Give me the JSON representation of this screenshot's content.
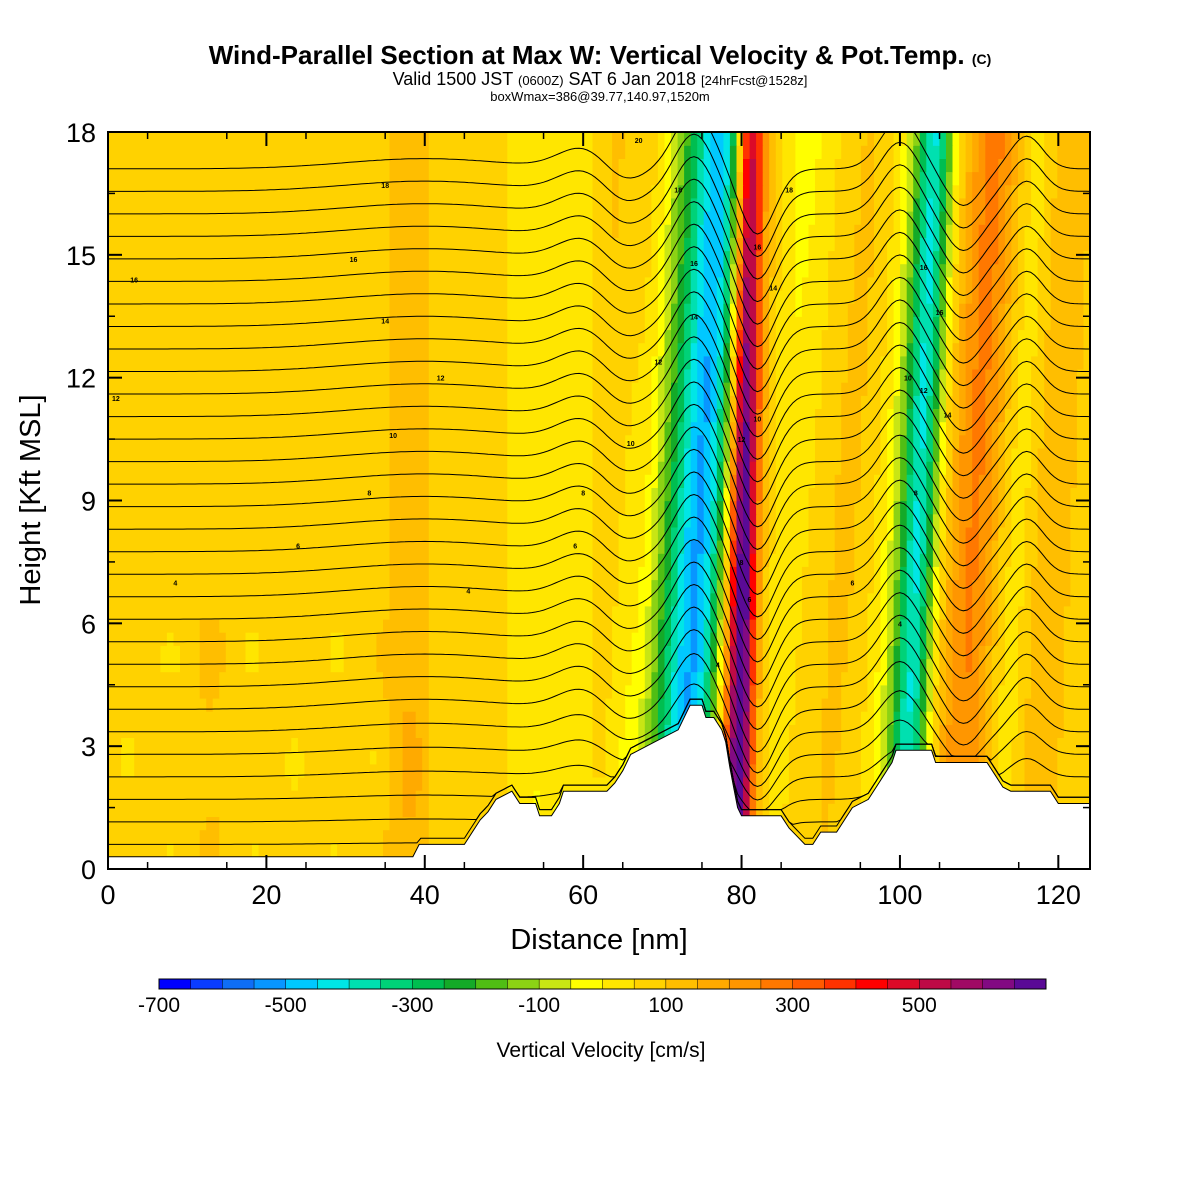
{
  "title": {
    "main": "Wind-Parallel Section at Max W: Vertical Velocity & Pot.Temp.",
    "main_tag": "(C)",
    "line2_prefix": "Valid 1500 JST",
    "line2_utc": "(0600Z)",
    "line2_date": "SAT 6 Jan 2018",
    "line2_fcst": "[24hrFcst@1528z]",
    "line3": "boxWmax=386@39.77,140.97,1520m"
  },
  "chart_data": {
    "type": "heatmap",
    "xlabel": "Distance [nm]",
    "ylabel": "Height [Kft MSL]",
    "xlim": [
      0,
      124
    ],
    "ylim": [
      0,
      18
    ],
    "x_ticks": [
      "0",
      "20",
      "40",
      "60",
      "80",
      "100",
      "120"
    ],
    "y_ticks": [
      "0",
      "3",
      "6",
      "9",
      "12",
      "15",
      "18"
    ],
    "terrain_profile": [
      [
        0,
        0.3
      ],
      [
        38.5,
        0.3
      ],
      [
        39.3,
        0.6
      ],
      [
        45,
        0.6
      ],
      [
        46,
        0.9
      ],
      [
        47,
        1.2
      ],
      [
        48,
        1.4
      ],
      [
        49,
        1.7
      ],
      [
        51,
        1.9
      ],
      [
        52,
        1.6
      ],
      [
        54,
        1.6
      ],
      [
        54.5,
        1.3
      ],
      [
        56,
        1.3
      ],
      [
        57,
        1.6
      ],
      [
        57.5,
        1.9
      ],
      [
        63,
        1.9
      ],
      [
        64,
        2.1
      ],
      [
        65,
        2.4
      ],
      [
        66,
        2.8
      ],
      [
        69,
        3.1
      ],
      [
        72,
        3.4
      ],
      [
        73.5,
        4.0
      ],
      [
        75,
        4.0
      ],
      [
        75.5,
        3.7
      ],
      [
        76.5,
        3.7
      ],
      [
        77.5,
        3.4
      ],
      [
        78,
        3.1
      ],
      [
        78.5,
        2.5
      ],
      [
        79,
        2.0
      ],
      [
        79.5,
        1.5
      ],
      [
        80,
        1.3
      ],
      [
        85,
        1.3
      ],
      [
        86,
        1.0
      ],
      [
        87,
        0.8
      ],
      [
        88,
        0.6
      ],
      [
        89,
        0.6
      ],
      [
        90,
        0.9
      ],
      [
        92,
        0.9
      ],
      [
        93,
        1.2
      ],
      [
        94,
        1.5
      ],
      [
        96,
        1.7
      ],
      [
        97,
        2.0
      ],
      [
        98,
        2.3
      ],
      [
        99,
        2.6
      ],
      [
        99.5,
        2.9
      ],
      [
        104,
        2.9
      ],
      [
        104.5,
        2.6
      ],
      [
        111,
        2.6
      ],
      [
        112,
        2.3
      ],
      [
        113,
        2.0
      ],
      [
        114,
        1.9
      ],
      [
        119,
        1.9
      ],
      [
        120,
        1.6
      ],
      [
        124,
        1.6
      ]
    ],
    "colorbar": {
      "label": "Vertical Velocity [cm/s]",
      "min": -700,
      "max": 700,
      "step": 50,
      "tick_labels": [
        "-700",
        "-500",
        "-300",
        "-100",
        "100",
        "300",
        "500"
      ],
      "colors": [
        "#0000ff",
        "#0a3cff",
        "#0f6ef5",
        "#0896ff",
        "#00c8ff",
        "#00e6e6",
        "#00e0b0",
        "#00d278",
        "#00be50",
        "#14aa28",
        "#50be14",
        "#8cd214",
        "#c8e614",
        "#ffff00",
        "#ffe600",
        "#ffd200",
        "#ffbe00",
        "#ffaa00",
        "#ff9600",
        "#ff7800",
        "#ff5a00",
        "#ff3200",
        "#ff0000",
        "#dc0a28",
        "#be0a46",
        "#a00a64",
        "#820a82",
        "#5a0a96"
      ]
    },
    "velocity_bands": [
      {
        "x0": 70.0,
        "x1": 82.0,
        "w": 30,
        "peak": -50
      },
      {
        "x0": 72.0,
        "x1": 79.0,
        "w": 55,
        "peak": -250
      },
      {
        "x0": 73.0,
        "x1": 77.8,
        "w": 22,
        "peak": -350
      },
      {
        "x0": 76.5,
        "x1": 83.5,
        "w": 28,
        "peak": 120
      },
      {
        "x0": 78.0,
        "x1": 82.0,
        "w": 18,
        "peak": 280
      },
      {
        "x0": 79.5,
        "x1": 81.0,
        "w": 9,
        "peak": 520
      },
      {
        "x0": 84.0,
        "x1": 89.0,
        "w": 30,
        "peak": -40
      },
      {
        "x0": 87.0,
        "x1": 97.0,
        "w": 40,
        "peak": 60
      },
      {
        "x0": 100.0,
        "x1": 104.0,
        "w": 25,
        "peak": -200
      },
      {
        "x0": 100.5,
        "x1": 104.5,
        "w": 12,
        "peak": -330
      },
      {
        "x0": 104.0,
        "x1": 110.0,
        "w": 30,
        "peak": 90
      },
      {
        "x0": 108.0,
        "x1": 113.0,
        "w": 22,
        "peak": 160
      },
      {
        "x0": 112.0,
        "x1": 117.0,
        "w": 22,
        "peak": -120
      },
      {
        "x0": 116.0,
        "x1": 121.0,
        "w": 18,
        "peak": 100
      },
      {
        "x0": 58.0,
        "x1": 60.0,
        "w": 24,
        "peak": -50
      },
      {
        "x0": 53.0,
        "x1": 53.0,
        "w": 16,
        "peak": -50
      },
      {
        "x0": 62.0,
        "x1": 64.0,
        "w": 16,
        "peak": 80
      },
      {
        "x0": 67.0,
        "x1": 69.0,
        "w": 14,
        "peak": 80
      },
      {
        "x0": 38.0,
        "x1": 38.0,
        "w": 14,
        "peak": 80
      },
      {
        "x0": 13.0,
        "x1": 13.0,
        "w": 10,
        "peak": 30
      }
    ],
    "theta_contour_labels": [
      {
        "x": 3.3,
        "y": 14.4,
        "text": "16"
      },
      {
        "x": 31.0,
        "y": 14.9,
        "text": "16"
      },
      {
        "x": 35.0,
        "y": 16.7,
        "text": "18"
      },
      {
        "x": 35.0,
        "y": 13.4,
        "text": "14"
      },
      {
        "x": 1.0,
        "y": 11.5,
        "text": "12"
      },
      {
        "x": 42.0,
        "y": 12.0,
        "text": "12"
      },
      {
        "x": 36.0,
        "y": 10.6,
        "text": "10"
      },
      {
        "x": 33.0,
        "y": 9.2,
        "text": "8"
      },
      {
        "x": 24.0,
        "y": 7.9,
        "text": "6"
      },
      {
        "x": 8.5,
        "y": 7.0,
        "text": "4"
      },
      {
        "x": 45.5,
        "y": 6.8,
        "text": "4"
      },
      {
        "x": 67.0,
        "y": 17.8,
        "text": "20"
      },
      {
        "x": 72.0,
        "y": 16.6,
        "text": "18"
      },
      {
        "x": 69.5,
        "y": 12.4,
        "text": "12"
      },
      {
        "x": 66.0,
        "y": 10.4,
        "text": "10"
      },
      {
        "x": 60.0,
        "y": 9.2,
        "text": "8"
      },
      {
        "x": 59.0,
        "y": 7.9,
        "text": "6"
      },
      {
        "x": 74.0,
        "y": 14.8,
        "text": "16"
      },
      {
        "x": 74.0,
        "y": 13.5,
        "text": "14"
      },
      {
        "x": 77.0,
        "y": 5.0,
        "text": "4"
      },
      {
        "x": 86.0,
        "y": 16.6,
        "text": "18"
      },
      {
        "x": 82.0,
        "y": 15.2,
        "text": "16"
      },
      {
        "x": 84.0,
        "y": 14.2,
        "text": "14"
      },
      {
        "x": 82.0,
        "y": 11.0,
        "text": "10"
      },
      {
        "x": 80.0,
        "y": 10.5,
        "text": "12"
      },
      {
        "x": 80.0,
        "y": 7.5,
        "text": "8"
      },
      {
        "x": 81.0,
        "y": 6.6,
        "text": "6"
      },
      {
        "x": 94.0,
        "y": 7.0,
        "text": "6"
      },
      {
        "x": 100.0,
        "y": 6.0,
        "text": "4"
      },
      {
        "x": 103.0,
        "y": 14.7,
        "text": "16"
      },
      {
        "x": 105.0,
        "y": 13.6,
        "text": "16"
      },
      {
        "x": 101.0,
        "y": 12.0,
        "text": "10"
      },
      {
        "x": 103.0,
        "y": 11.7,
        "text": "12"
      },
      {
        "x": 106.0,
        "y": 11.1,
        "text": "14"
      },
      {
        "x": 102.0,
        "y": 9.2,
        "text": "8"
      }
    ]
  }
}
